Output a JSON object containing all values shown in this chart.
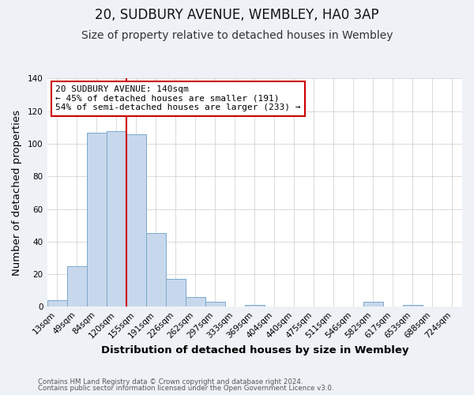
{
  "title": "20, SUDBURY AVENUE, WEMBLEY, HA0 3AP",
  "subtitle": "Size of property relative to detached houses in Wembley",
  "xlabel": "Distribution of detached houses by size in Wembley",
  "ylabel": "Number of detached properties",
  "bin_labels": [
    "13sqm",
    "49sqm",
    "84sqm",
    "120sqm",
    "155sqm",
    "191sqm",
    "226sqm",
    "262sqm",
    "297sqm",
    "333sqm",
    "369sqm",
    "404sqm",
    "440sqm",
    "475sqm",
    "511sqm",
    "546sqm",
    "582sqm",
    "617sqm",
    "653sqm",
    "688sqm",
    "724sqm"
  ],
  "bar_values": [
    4,
    25,
    107,
    108,
    106,
    45,
    17,
    6,
    3,
    0,
    1,
    0,
    0,
    0,
    0,
    0,
    3,
    0,
    1,
    0,
    0
  ],
  "bar_color": "#c8d8ec",
  "bar_edge_color": "#7aa8cc",
  "ylim": [
    0,
    140
  ],
  "yticks": [
    0,
    20,
    40,
    60,
    80,
    100,
    120,
    140
  ],
  "grid_color": "#cccccc",
  "plot_bg_color": "#ffffff",
  "fig_bg_color": "#eef2f7",
  "annotation_title": "20 SUDBURY AVENUE: 140sqm",
  "annotation_line1": "← 45% of detached houses are smaller (191)",
  "annotation_line2": "54% of semi-detached houses are larger (233) →",
  "annotation_box_color": "#ffffff",
  "annotation_box_edge": "#cc0000",
  "vline_color": "#cc0000",
  "vline_x_index": 4,
  "footer1": "Contains HM Land Registry data © Crown copyright and database right 2024.",
  "footer2": "Contains public sector information licensed under the Open Government Licence v3.0.",
  "title_fontsize": 12,
  "subtitle_fontsize": 10,
  "axis_label_fontsize": 9.5,
  "tick_fontsize": 7.5,
  "annot_fontsize": 8
}
